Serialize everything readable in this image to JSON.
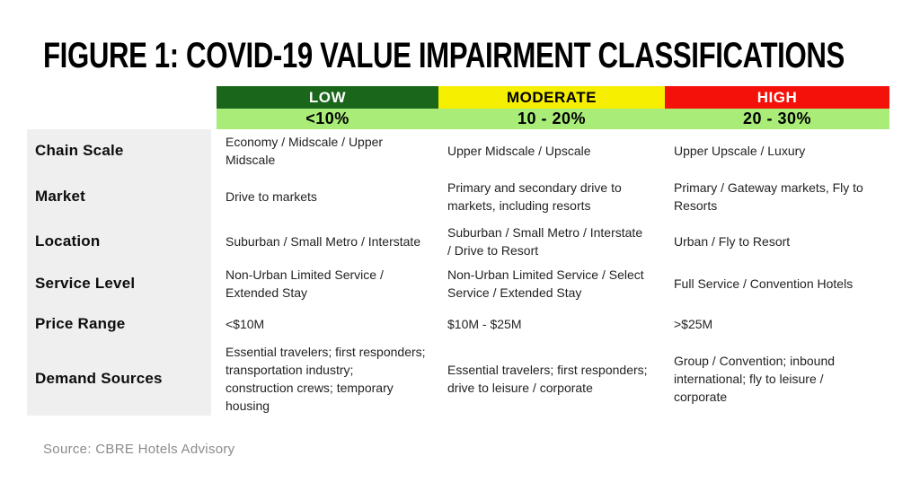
{
  "figure": {
    "title": "FIGURE 1: COVID-19 VALUE IMPAIRMENT CLASSIFICATIONS",
    "source": "Source: CBRE Hotels Advisory"
  },
  "colors": {
    "low_header": "#1a661a",
    "moderate_header": "#f7ef00",
    "high_header": "#f31109",
    "range_band": "#a9ec78",
    "label_column": "#efefef",
    "low_header_text": "#ffffff",
    "moderate_header_text": "#000000",
    "high_header_text": "#ffffff"
  },
  "chart_data": {
    "type": "table",
    "columns": [
      {
        "label": "LOW",
        "range": "<10%"
      },
      {
        "label": "MODERATE",
        "range": "10 - 20%"
      },
      {
        "label": "HIGH",
        "range": "20 - 30%"
      }
    ],
    "rows": [
      {
        "label": "Chain Scale",
        "low": "Economy / Midscale / Upper\nMidscale",
        "moderate": "Upper Midscale / Upscale",
        "high": "Upper Upscale / Luxury"
      },
      {
        "label": "Market",
        "low": "Drive to markets",
        "moderate": "Primary and secondary drive to\nmarkets, including resorts",
        "high": "Primary / Gateway markets, Fly to\nResorts"
      },
      {
        "label": "Location",
        "low": "Suburban / Small Metro / Interstate",
        "moderate": "Suburban / Small Metro / Interstate\n/ Drive to Resort",
        "high": "Urban / Fly to Resort"
      },
      {
        "label": "Service Level",
        "low": "Non-Urban Limited Service /\nExtended Stay",
        "moderate": "Non-Urban Limited Service / Select\nService / Extended Stay",
        "high": "Full Service / Convention Hotels"
      },
      {
        "label": "Price Range",
        "low": "<$10M",
        "moderate": "$10M - $25M",
        "high": ">$25M"
      },
      {
        "label": "Demand Sources",
        "low": "Essential travelers; first responders;\ntransportation industry;\nconstruction crews; temporary\nhousing",
        "moderate": "Essential travelers; first responders;\ndrive to leisure / corporate",
        "high": "Group / Convention; inbound\ninternational; fly to leisure /\ncorporate"
      }
    ]
  }
}
